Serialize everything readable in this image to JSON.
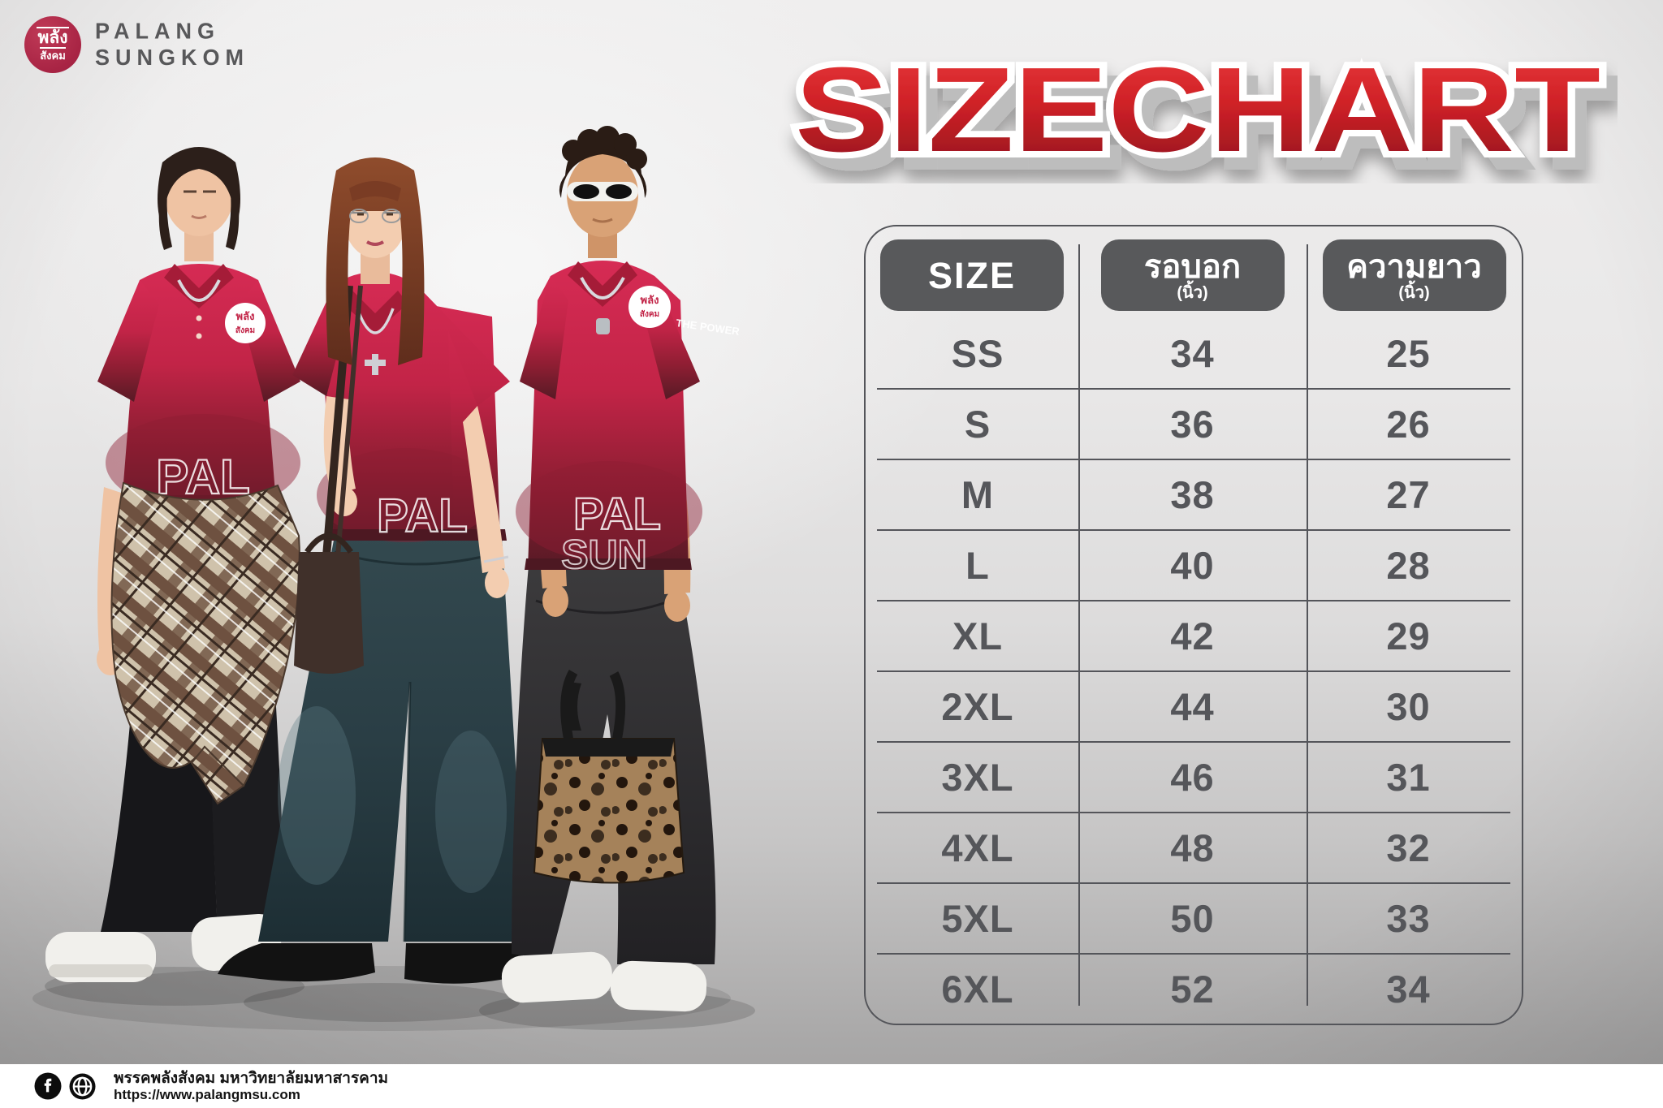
{
  "brand": {
    "logo_badge_top": "พลัง",
    "logo_badge_bottom": "สังคม",
    "wordmark_line1": "PALANG",
    "wordmark_line2": "SUNGKOM"
  },
  "title": "SIZECHART",
  "chart_data": {
    "type": "table",
    "title": "SIZECHART",
    "columns": [
      {
        "label": "SIZE",
        "sub": ""
      },
      {
        "label": "รอบอก",
        "sub": "(นิ้ว)"
      },
      {
        "label": "ความยาว",
        "sub": "(นิ้ว)"
      }
    ],
    "rows": [
      [
        "SS",
        "34",
        "25"
      ],
      [
        "S",
        "36",
        "26"
      ],
      [
        "M",
        "38",
        "27"
      ],
      [
        "L",
        "40",
        "28"
      ],
      [
        "XL",
        "42",
        "29"
      ],
      [
        "2XL",
        "44",
        "30"
      ],
      [
        "3XL",
        "46",
        "31"
      ],
      [
        "4XL",
        "48",
        "32"
      ],
      [
        "5XL",
        "50",
        "33"
      ],
      [
        "6XL",
        "52",
        "34"
      ]
    ]
  },
  "models": {
    "shirt_print_top": "PAL",
    "shirt_print_bottom": "SUN",
    "sleeve_print": "THE POWER",
    "chest_badge_top": "พลัง",
    "chest_badge_bottom": "สังคม"
  },
  "footer": {
    "org": "พรรคพลังสังคม มหาวิทยาลัยมหาสารคาม",
    "url": "https://www.palangmsu.com"
  },
  "colors": {
    "accent_red": "#c22447",
    "title_red_top": "#ea3a3a",
    "title_red_bottom": "#8f141c",
    "header_badge_gray": "#58595b",
    "table_text_gray": "#55565a",
    "footer_bg": "#ffffff"
  }
}
